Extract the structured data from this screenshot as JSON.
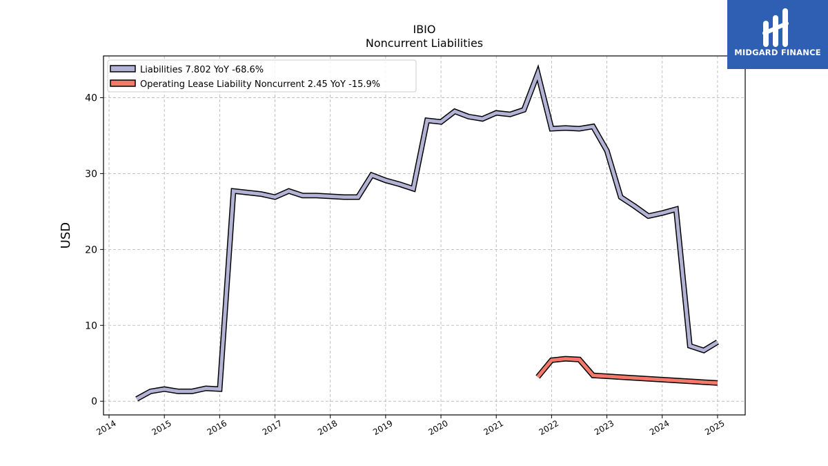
{
  "chart_data": {
    "type": "line",
    "title": "IBIO",
    "subtitle": "Noncurrent  Liabilities",
    "ylabel": "USD",
    "xlabel": "",
    "xlim": [
      2013.9,
      2025.5
    ],
    "ylim": [
      -1.8,
      45.5
    ],
    "yticks": [
      0,
      10,
      20,
      30,
      40
    ],
    "xticks": [
      "2014",
      "2015",
      "2016",
      "2017",
      "2018",
      "2019",
      "2020",
      "2021",
      "2022",
      "2023",
      "2024",
      "2025"
    ],
    "grid": true,
    "legend_position": "top-left",
    "series": [
      {
        "name": "Liabilities",
        "legend": "Liabilities  7.802 YoY -68.6%",
        "color": "#b3b3d6",
        "x": [
          2014.5,
          2014.75,
          2015.0,
          2015.25,
          2015.5,
          2015.75,
          2016.0,
          2016.25,
          2016.5,
          2016.75,
          2017.0,
          2017.25,
          2017.5,
          2017.75,
          2018.0,
          2018.25,
          2018.5,
          2018.75,
          2019.0,
          2019.25,
          2019.5,
          2019.75,
          2020.0,
          2020.25,
          2020.5,
          2020.75,
          2021.0,
          2021.25,
          2021.5,
          2021.75,
          2022.0,
          2022.25,
          2022.5,
          2022.75,
          2023.0,
          2023.25,
          2023.5,
          2023.75,
          2024.0,
          2024.25,
          2024.5,
          2024.75,
          2025.0
        ],
        "values": [
          0.3,
          1.3,
          1.6,
          1.3,
          1.3,
          1.7,
          1.6,
          27.7,
          27.5,
          27.3,
          26.9,
          27.7,
          27.1,
          27.1,
          27.0,
          26.9,
          26.9,
          29.8,
          29.1,
          28.6,
          28.0,
          37.0,
          36.8,
          38.2,
          37.5,
          37.2,
          38.0,
          37.8,
          38.4,
          43.2,
          35.9,
          36.0,
          35.9,
          36.2,
          33.0,
          26.9,
          25.7,
          24.4,
          24.8,
          25.3,
          7.3,
          6.7,
          7.8
        ]
      },
      {
        "name": "Operating Lease Liability Noncurrent",
        "legend": "Operating Lease Liability Noncurrent  2.45 YoY -15.9%",
        "color": "#f4796b",
        "x": [
          2021.75,
          2022.0,
          2022.25,
          2022.5,
          2022.75,
          2025.0
        ],
        "values": [
          3.2,
          5.4,
          5.6,
          5.5,
          3.4,
          2.4
        ]
      }
    ]
  },
  "logo": {
    "text": "MIDGARD FINANCE"
  }
}
